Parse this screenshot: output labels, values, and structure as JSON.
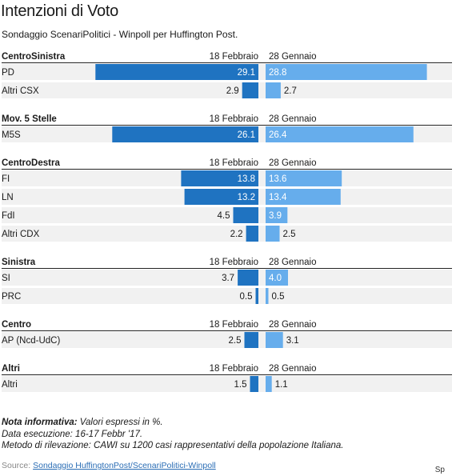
{
  "title": "Intenzioni di Voto",
  "subtitle": "Sondaggio ScenariPolitici - Winpoll per Huffington Post.",
  "colors": {
    "left_bar": "#1f73c1",
    "right_bar": "#66adec",
    "row_bg": "#f1f1f1",
    "text_dark": "#1a1a1a"
  },
  "chart_data": {
    "type": "bar",
    "orientation": "horizontal-diverging",
    "series": [
      {
        "name": "18 Febbraio",
        "direction": "left"
      },
      {
        "name": "28 Gennaio",
        "direction": "right"
      }
    ],
    "groups": [
      {
        "label": "CentroSinistra",
        "left_header": "18 Febbraio",
        "right_header": "28 Gennaio",
        "rows": [
          {
            "label": "PD",
            "left": 29.1,
            "right": 28.8
          },
          {
            "label": "Altri CSX",
            "left": 2.9,
            "right": 2.7
          }
        ]
      },
      {
        "label": "Mov. 5 Stelle",
        "left_header": "18 Febbraio",
        "right_header": "28 Gennaio",
        "rows": [
          {
            "label": "M5S",
            "left": 26.1,
            "right": 26.4
          }
        ]
      },
      {
        "label": "CentroDestra",
        "left_header": "18 Febbraio",
        "right_header": "28 Gennaio",
        "rows": [
          {
            "label": "FI",
            "left": 13.8,
            "right": 13.6
          },
          {
            "label": "LN",
            "left": 13.2,
            "right": 13.4
          },
          {
            "label": "FdI",
            "left": 4.5,
            "right": 3.9
          },
          {
            "label": "Altri CDX",
            "left": 2.2,
            "right": 2.5
          }
        ]
      },
      {
        "label": "Sinistra",
        "left_header": "18 Febbraio",
        "right_header": "28 Gennaio",
        "rows": [
          {
            "label": "SI",
            "left": 3.7,
            "right": 4.0
          },
          {
            "label": "PRC",
            "left": 0.5,
            "right": 0.5
          }
        ]
      },
      {
        "label": "Centro",
        "left_header": "18 Febbraio",
        "right_header": "28 Gennaio",
        "rows": [
          {
            "label": "AP (Ncd-UdC)",
            "left": 2.5,
            "right": 3.1
          }
        ]
      },
      {
        "label": "Altri",
        "left_header": "18 Febbraio",
        "right_header": "28 Gennaio",
        "rows": [
          {
            "label": "Altri",
            "left": 1.5,
            "right": 1.1
          }
        ]
      }
    ]
  },
  "notes": {
    "note_label": "Nota informativa:",
    "note_text": " Valori espressi in %.",
    "date_line": "Data esecuzione: 16-17 Febbr '17.",
    "method_line": "Metodo di rilevazione: CAWI su 1200 casi rappresentativi della popolazione Italiana."
  },
  "source": {
    "label": "Source: ",
    "link_text": "Sondaggio HuffingtonPost/ScenariPolitici-Winpoll"
  },
  "corner_text": "Sp"
}
